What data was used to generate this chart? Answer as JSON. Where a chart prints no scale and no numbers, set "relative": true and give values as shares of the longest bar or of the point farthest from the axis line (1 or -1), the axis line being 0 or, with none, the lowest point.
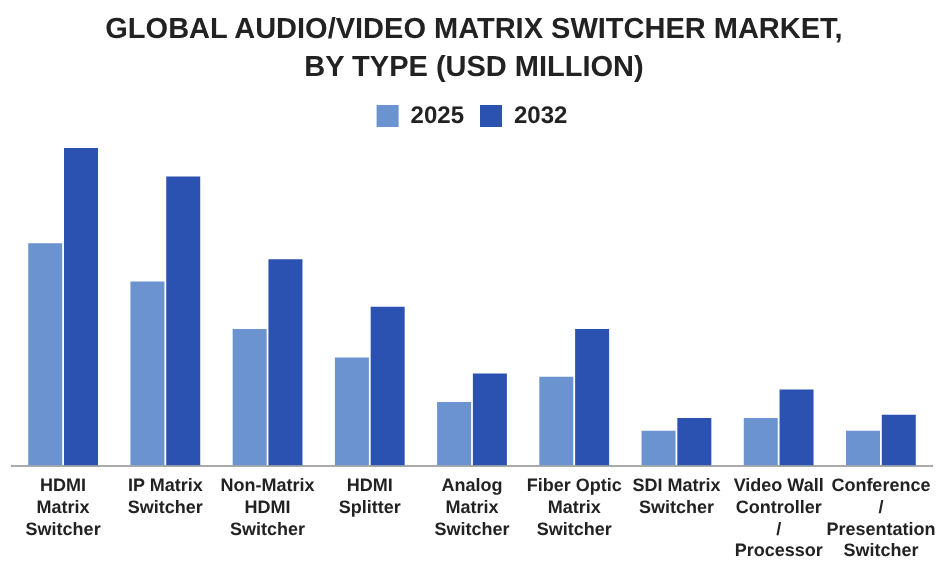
{
  "chart_data": {
    "type": "bar",
    "title": "GLOBAL AUDIO/VIDEO MATRIX SWITCHER MARKET, BY TYPE (USD MILLION)",
    "categories": [
      "HDMI Matrix Switcher",
      "IP Matrix Switcher",
      "Non-Matrix HDMI Switcher",
      "HDMI Splitter",
      "Analog Matrix Switcher",
      "Fiber Optic Matrix Switcher",
      "SDI Matrix Switcher",
      "Video Wall Controller / Processor",
      "Conference / Presentation Switcher"
    ],
    "relative": true,
    "legend": "top",
    "series": [
      {
        "name": "2025",
        "color": "#6a93cf",
        "values": [
          0.7,
          0.58,
          0.43,
          0.34,
          0.2,
          0.28,
          0.11,
          0.15,
          0.11
        ]
      },
      {
        "name": "2032",
        "color": "#2b52b0",
        "values": [
          1,
          0.91,
          0.65,
          0.5,
          0.29,
          0.43,
          0.15,
          0.24,
          0.16
        ]
      }
    ]
  }
}
